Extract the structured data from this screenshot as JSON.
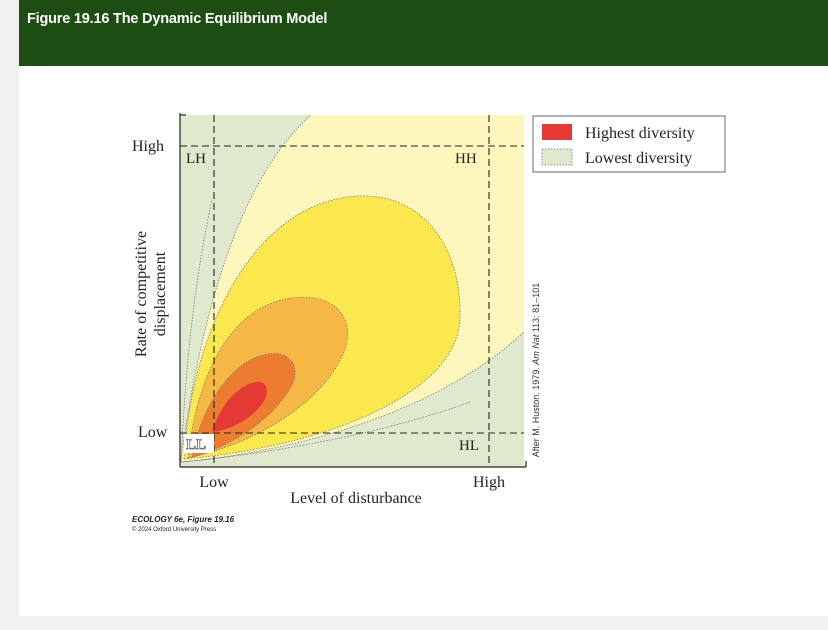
{
  "header": {
    "title": "Figure 19.16  The Dynamic Equilibrium Model",
    "background_color": "#1e4d13"
  },
  "diagram": {
    "y_axis_label_line1": "Rate of competitive",
    "y_axis_label_line2": "displacement",
    "y_tick_high": "High",
    "y_tick_low": "Low",
    "x_axis_label": "Level of disturbance",
    "x_tick_low": "Low",
    "x_tick_high": "High",
    "corner_labels": {
      "lh": "LH",
      "hh": "HH",
      "ll": "LL",
      "hl": "HL"
    },
    "attribution_prefix": "After M. Huston. 1979. ",
    "attribution_journal": "Am Nat",
    "attribution_suffix": " 113: 81–101",
    "colors": {
      "highest_diversity": "#e53935",
      "lowest_diversity": "#dfe9cd",
      "yellow_light": "#fdf6bd",
      "yellow_mid": "#fbe84e",
      "orange_light": "#f6b845",
      "orange_dark": "#ec7d30"
    }
  },
  "legend": {
    "items": [
      {
        "label": "Highest diversity",
        "color": "#e53935"
      },
      {
        "label": "Lowest diversity",
        "color": "#dfe9cd"
      }
    ]
  },
  "credit": {
    "line1": "ECOLOGY 6e, Figure 19.16",
    "line2": "© 2024 Oxford University Press"
  }
}
